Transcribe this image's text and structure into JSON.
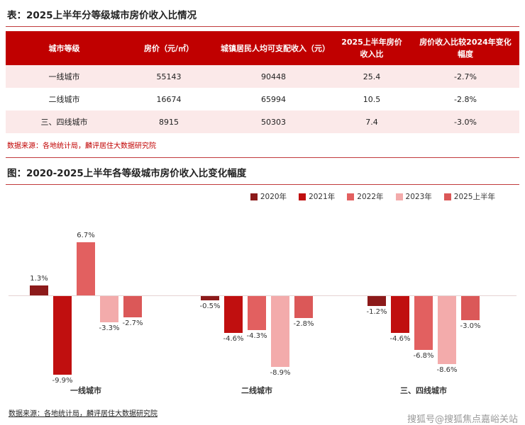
{
  "page": {
    "table_section": {
      "title": "表：2025上半年分等级城市房价收入比情况",
      "source": "数据来源：各地统计局，麟评居住大数据研究院"
    },
    "chart_section": {
      "title": "图：2020-2025上半年各等级城市房价收入比变化幅度",
      "source": "数据来源：各地统计局，麟评居住大数据研究院"
    },
    "watermark": "搜狐号@搜狐焦点嘉峪关站"
  },
  "chart_data": [
    {
      "type": "table",
      "title": "2025上半年分等级城市房价收入比情况",
      "headers": [
        "城市等级",
        "房价（元/㎡）",
        "城镇居民人均可支配收入（元）",
        "2025上半年房价收入比",
        "房价收入比较2024年变化幅度"
      ],
      "rows": [
        [
          "一线城市",
          "55143",
          "90448",
          "25.4",
          "-2.7%"
        ],
        [
          "二线城市",
          "16674",
          "65994",
          "10.5",
          "-2.8%"
        ],
        [
          "三、四线城市",
          "8915",
          "50303",
          "7.4",
          "-3.0%"
        ]
      ]
    },
    {
      "type": "bar",
      "title": "2020-2025上半年各等级城市房价收入比变化幅度",
      "categories": [
        "一线城市",
        "二线城市",
        "三、四线城市"
      ],
      "series": [
        {
          "name": "2020年",
          "color": "#8C1A1A",
          "values": [
            1.3,
            -0.5,
            -1.2
          ]
        },
        {
          "name": "2021年",
          "color": "#C00F0F",
          "values": [
            -9.9,
            -4.6,
            -4.6
          ]
        },
        {
          "name": "2022年",
          "color": "#E26060",
          "values": [
            6.7,
            -4.3,
            -6.8
          ]
        },
        {
          "name": "2023年",
          "color": "#F3ABAB",
          "values": [
            -3.3,
            -8.9,
            -8.6
          ]
        },
        {
          "name": "2025上半年",
          "color": "#DB5858",
          "values": [
            -2.7,
            -2.8,
            -3.0
          ]
        }
      ],
      "value_suffix": "%",
      "ylim": [
        -11,
        8
      ],
      "grid": false,
      "legend_position": "top-right",
      "zero_line": true
    }
  ],
  "colors": {
    "accent": "#C00000",
    "table_header_bg": "#C00000",
    "row_alt_bg": "#FBE9E9"
  }
}
